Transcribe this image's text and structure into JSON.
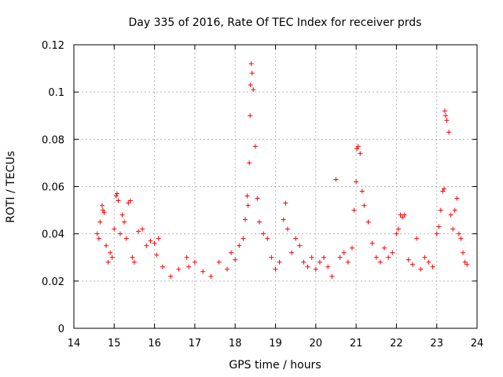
{
  "chart_data": {
    "type": "scatter",
    "title": "Day 335 of 2016, Rate Of TEC Index for receiver prds",
    "xlabel": "GPS time / hours",
    "ylabel": "ROTI / TECUs",
    "xlim": [
      14,
      24
    ],
    "ylim": [
      0,
      0.12
    ],
    "xticks": [
      14,
      15,
      16,
      17,
      18,
      19,
      20,
      21,
      22,
      23,
      24
    ],
    "xtick_labels": [
      "14",
      "15",
      "16",
      "17",
      "18",
      "19",
      "20",
      "21",
      "22",
      "23",
      "24"
    ],
    "yticks": [
      0,
      0.02,
      0.04,
      0.06,
      0.08,
      0.1,
      0.12
    ],
    "ytick_labels": [
      "0",
      "0.02",
      "0.04",
      "0.06",
      "0.08",
      "0.1",
      "0.12"
    ],
    "grid": true,
    "marker": "plus",
    "marker_color": "#ff0000",
    "data_range_x": [
      14.55,
      23.78
    ],
    "series": [
      {
        "name": "ROTI",
        "x": [
          14.58,
          14.62,
          14.65,
          14.7,
          14.72,
          14.75,
          14.8,
          14.85,
          14.9,
          14.95,
          15.0,
          15.05,
          15.07,
          15.1,
          15.15,
          15.2,
          15.25,
          15.3,
          15.35,
          15.4,
          15.45,
          15.5,
          15.6,
          15.7,
          15.8,
          15.9,
          16.0,
          16.05,
          16.1,
          16.2,
          16.4,
          16.6,
          16.8,
          16.85,
          17.0,
          17.2,
          17.4,
          17.6,
          17.8,
          17.9,
          18.0,
          18.1,
          18.2,
          18.25,
          18.3,
          18.32,
          18.35,
          18.37,
          18.38,
          18.4,
          18.42,
          18.45,
          18.5,
          18.55,
          18.6,
          18.7,
          18.8,
          18.9,
          19.0,
          19.1,
          19.2,
          19.25,
          19.3,
          19.4,
          19.5,
          19.6,
          19.7,
          19.8,
          19.9,
          20.0,
          20.1,
          20.2,
          20.3,
          20.4,
          20.5,
          20.6,
          20.7,
          20.8,
          20.9,
          20.95,
          21.0,
          21.02,
          21.05,
          21.1,
          21.15,
          21.2,
          21.3,
          21.4,
          21.5,
          21.6,
          21.7,
          21.8,
          21.9,
          22.0,
          22.05,
          22.1,
          22.15,
          22.2,
          22.3,
          22.4,
          22.5,
          22.6,
          22.7,
          22.8,
          22.9,
          23.0,
          23.05,
          23.1,
          23.15,
          23.18,
          23.2,
          23.22,
          23.25,
          23.3,
          23.35,
          23.4,
          23.45,
          23.5,
          23.55,
          23.6,
          23.65,
          23.7,
          23.75
        ],
        "y": [
          0.04,
          0.038,
          0.045,
          0.052,
          0.05,
          0.049,
          0.035,
          0.028,
          0.032,
          0.03,
          0.042,
          0.056,
          0.057,
          0.054,
          0.04,
          0.048,
          0.045,
          0.038,
          0.053,
          0.054,
          0.03,
          0.028,
          0.041,
          0.042,
          0.035,
          0.037,
          0.036,
          0.031,
          0.038,
          0.026,
          0.022,
          0.025,
          0.03,
          0.026,
          0.028,
          0.024,
          0.022,
          0.028,
          0.025,
          0.032,
          0.029,
          0.035,
          0.038,
          0.046,
          0.056,
          0.052,
          0.07,
          0.09,
          0.103,
          0.112,
          0.108,
          0.101,
          0.077,
          0.055,
          0.045,
          0.04,
          0.038,
          0.03,
          0.025,
          0.028,
          0.046,
          0.053,
          0.042,
          0.032,
          0.038,
          0.035,
          0.028,
          0.026,
          0.03,
          0.025,
          0.028,
          0.03,
          0.026,
          0.022,
          0.063,
          0.03,
          0.032,
          0.028,
          0.034,
          0.05,
          0.062,
          0.076,
          0.077,
          0.074,
          0.058,
          0.052,
          0.045,
          0.036,
          0.03,
          0.028,
          0.034,
          0.03,
          0.032,
          0.04,
          0.042,
          0.048,
          0.047,
          0.048,
          0.029,
          0.027,
          0.038,
          0.025,
          0.03,
          0.028,
          0.026,
          0.04,
          0.043,
          0.05,
          0.058,
          0.059,
          0.092,
          0.09,
          0.088,
          0.083,
          0.048,
          0.042,
          0.05,
          0.055,
          0.04,
          0.038,
          0.032,
          0.028,
          0.027
        ]
      }
    ]
  }
}
